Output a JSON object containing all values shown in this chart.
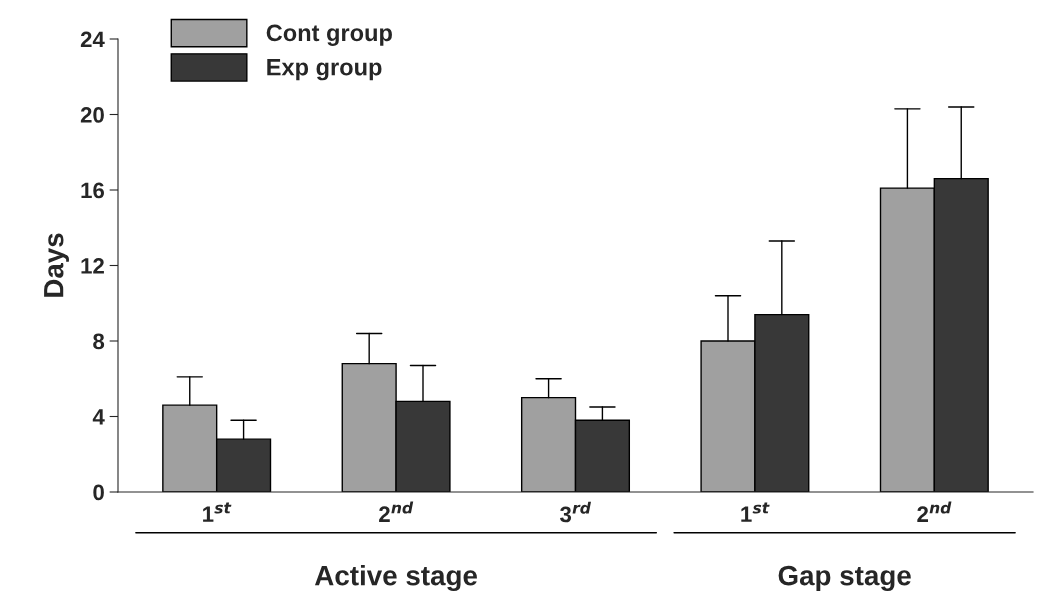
{
  "chart_data": {
    "type": "bar",
    "ylabel": "Days",
    "categories": [
      "1$^{st}$",
      "2$^{nd}$",
      "3$^{rd}$",
      "1$^{st}$",
      "2$^{nd}$"
    ],
    "series": [
      {
        "name": "Cont group",
        "color": "#a0a0a0",
        "values": [
          4.6,
          6.8,
          5.0,
          8.0,
          16.1
        ],
        "errors": [
          [
            4.6,
            6.1
          ],
          [
            6.8,
            8.4
          ],
          [
            5.0,
            6.0
          ],
          [
            8.0,
            10.4
          ],
          [
            16.1,
            20.3
          ]
        ]
      },
      {
        "name": "Exp group",
        "color": "#383838",
        "values": [
          2.8,
          4.8,
          3.8,
          9.4,
          16.6
        ],
        "errors": [
          [
            2.8,
            3.8
          ],
          [
            4.8,
            6.7
          ],
          [
            3.8,
            4.5
          ],
          [
            9.4,
            13.3
          ],
          [
            16.6,
            20.4
          ]
        ]
      }
    ],
    "ylim": [
      0,
      24
    ],
    "yticks": [
      0,
      4,
      8,
      12,
      16,
      20,
      24
    ],
    "annotations": [
      "Active stage",
      "Gap stage"
    ],
    "grid": false,
    "legend": "top left"
  }
}
